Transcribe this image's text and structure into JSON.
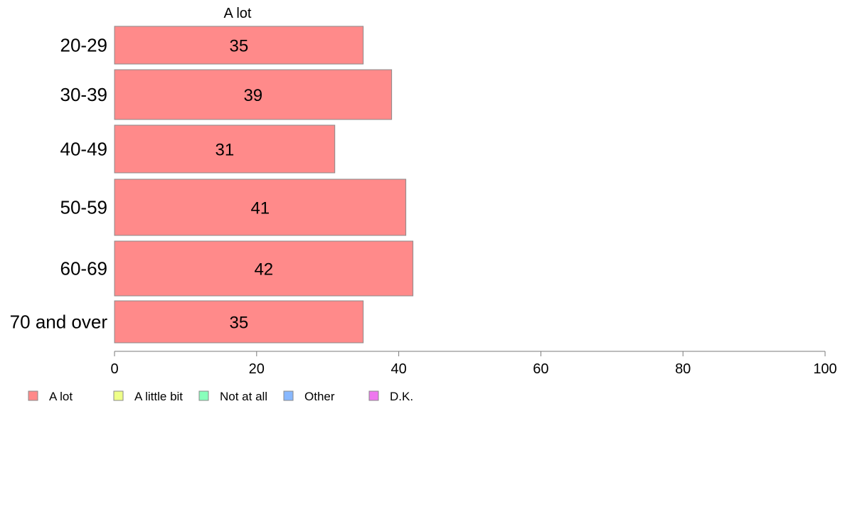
{
  "chart_data": {
    "type": "bar",
    "orientation": "horizontal",
    "series_title": "A lot",
    "categories": [
      "20-29",
      "30-39",
      "40-49",
      "50-59",
      "60-69",
      "70 and over"
    ],
    "series": [
      {
        "name": "A lot",
        "values": [
          35,
          39,
          31,
          41,
          42,
          35
        ],
        "color": "#ff8a8a"
      }
    ],
    "xlim": [
      0,
      100
    ],
    "xticks": [
      0,
      20,
      40,
      60,
      80,
      100
    ],
    "grid": false,
    "legend": {
      "placement": "bottom-left",
      "items": [
        {
          "label": "A lot",
          "color": "#ff8a8a"
        },
        {
          "label": "A little bit",
          "color": "#eeff88"
        },
        {
          "label": "Not at all",
          "color": "#88ffbb"
        },
        {
          "label": "Other",
          "color": "#88b8ff"
        },
        {
          "label": "D.K.",
          "color": "#ee77ee"
        }
      ]
    }
  }
}
